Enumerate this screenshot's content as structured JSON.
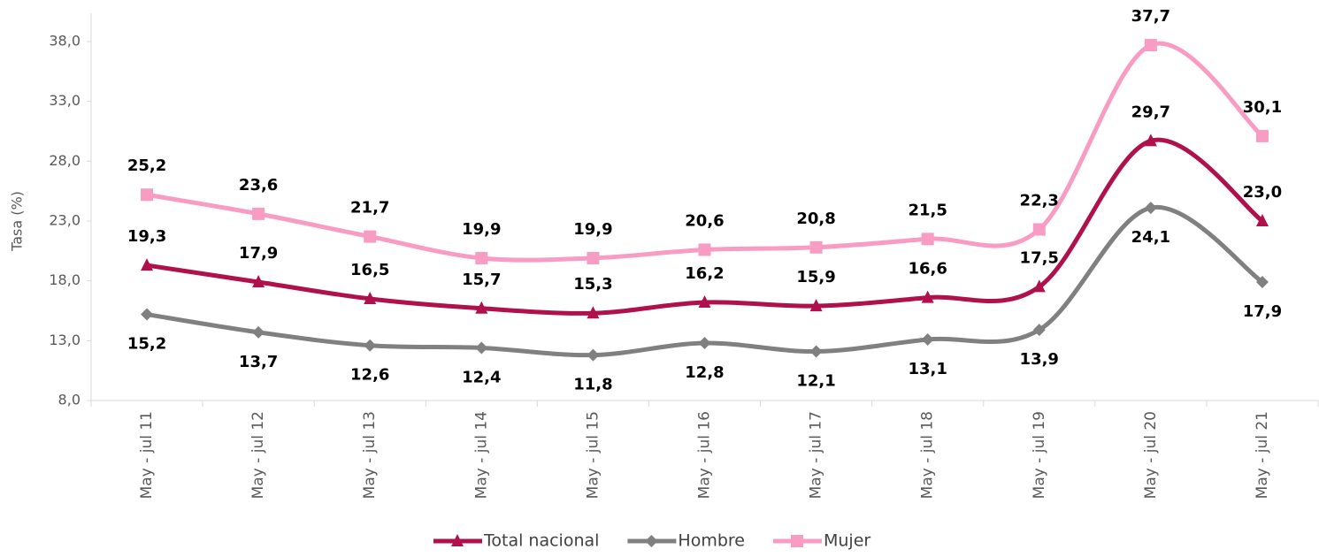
{
  "chart_data": {
    "type": "line",
    "y_label": "Tasa (%)",
    "categories": [
      "May - jul 11",
      "May - jul 12",
      "May - jul 13",
      "May - jul 14",
      "May - jul 15",
      "May - jul 16",
      "May - jul 17",
      "May - jul 18",
      "May - jul 19",
      "May - jul 20",
      "May - jul 21"
    ],
    "series": [
      {
        "name": "Total nacional",
        "color": "#b0104b",
        "marker": "triangle",
        "values": [
          19.3,
          17.9,
          16.5,
          15.7,
          15.3,
          16.2,
          15.9,
          16.6,
          17.5,
          29.7,
          23.0
        ],
        "value_labels": [
          "19,3",
          "17,9",
          "16,5",
          "15,7",
          "15,3",
          "16,2",
          "15,9",
          "16,6",
          "17,5",
          "29,7",
          "23,0"
        ]
      },
      {
        "name": "Hombre",
        "color": "#808080",
        "marker": "diamond",
        "values": [
          15.2,
          13.7,
          12.6,
          12.4,
          11.8,
          12.8,
          12.1,
          13.1,
          13.9,
          24.1,
          17.9
        ],
        "value_labels": [
          "15,2",
          "13,7",
          "12,6",
          "12,4",
          "11,8",
          "12,8",
          "12,1",
          "13,1",
          "13,9",
          "24,1",
          "17,9"
        ]
      },
      {
        "name": "Mujer",
        "color": "#f99cc4",
        "marker": "square",
        "values": [
          25.2,
          23.6,
          21.7,
          19.9,
          19.9,
          20.6,
          20.8,
          21.5,
          22.3,
          37.7,
          30.1
        ],
        "value_labels": [
          "25,2",
          "23,6",
          "21,7",
          "19,9",
          "19,9",
          "20,6",
          "20,8",
          "21,5",
          "22,3",
          "37,7",
          "30,1"
        ]
      }
    ],
    "ylim": [
      8,
      38
    ],
    "yticks": [
      {
        "value": 8,
        "label": "8,0"
      },
      {
        "value": 13,
        "label": "13,0"
      },
      {
        "value": 18,
        "label": "18,0"
      },
      {
        "value": 23,
        "label": "23,0"
      },
      {
        "value": 28,
        "label": "28,0"
      },
      {
        "value": 33,
        "label": "33,0"
      },
      {
        "value": 38,
        "label": "38,0"
      }
    ],
    "grid": false,
    "legend": "bottom"
  }
}
